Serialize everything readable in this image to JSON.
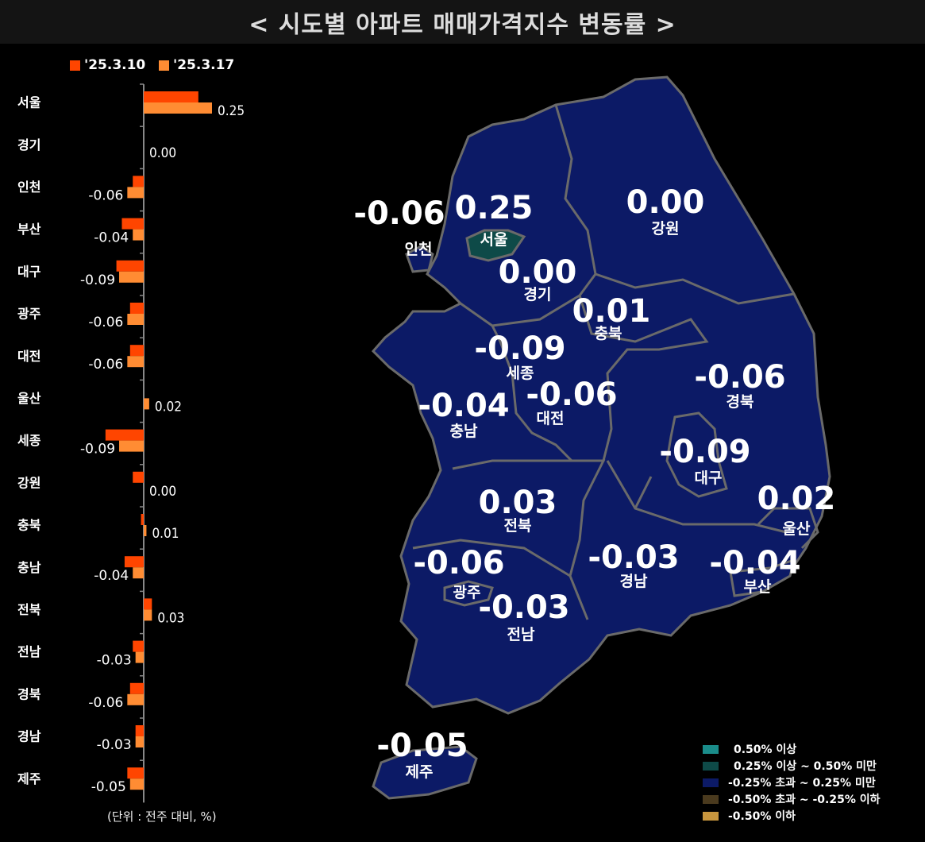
{
  "title": "< 시도별 아파트 매매가격지수 변동률 >",
  "unit_note": "(단위 : 전주 대비, %)",
  "colors": {
    "series_prev": "#ff4500",
    "series_curr": "#ff8c33",
    "map_fill": "#0c1a66",
    "seoul_fill": "#0e4a48",
    "border": "#6a6a6a"
  },
  "chart_data": [
    {
      "type": "bar",
      "orientation": "horizontal",
      "categories": [
        "서울",
        "경기",
        "인천",
        "부산",
        "대구",
        "광주",
        "대전",
        "울산",
        "세종",
        "강원",
        "충북",
        "충남",
        "전북",
        "전남",
        "경북",
        "경남",
        "제주"
      ],
      "series": [
        {
          "name": "'25.3.10",
          "values": [
            0.2,
            0.0,
            -0.04,
            -0.08,
            -0.1,
            -0.05,
            -0.05,
            0.0,
            -0.14,
            -0.04,
            -0.01,
            -0.07,
            0.03,
            -0.04,
            -0.05,
            -0.03,
            -0.06
          ]
        },
        {
          "name": "'25.3.17",
          "values": [
            0.25,
            0.0,
            -0.06,
            -0.04,
            -0.09,
            -0.06,
            -0.06,
            0.02,
            -0.09,
            0.0,
            0.01,
            -0.04,
            0.03,
            -0.03,
            -0.06,
            -0.03,
            -0.05
          ]
        }
      ],
      "data_labels": [
        "0.25",
        "0.00",
        "-0.06",
        "-0.04",
        "-0.09",
        "-0.06",
        "-0.06",
        "0.02",
        "-0.09",
        "0.00",
        "0.01",
        "-0.04",
        "0.03",
        "-0.03",
        "-0.06",
        "-0.03",
        "-0.05"
      ],
      "legend": "top"
    },
    {
      "type": "choropleth-map",
      "regions": [
        {
          "name": "인천",
          "value": "-0.06"
        },
        {
          "name": "서울",
          "value": "0.25"
        },
        {
          "name": "강원",
          "value": "0.00"
        },
        {
          "name": "경기",
          "value": "0.00"
        },
        {
          "name": "충북",
          "value": "0.01"
        },
        {
          "name": "세종",
          "value": "-0.09"
        },
        {
          "name": "경북",
          "value": "-0.06"
        },
        {
          "name": "충남",
          "value": "-0.04"
        },
        {
          "name": "대전",
          "value": "-0.06"
        },
        {
          "name": "대구",
          "value": "-0.09"
        },
        {
          "name": "전북",
          "value": "0.03"
        },
        {
          "name": "울산",
          "value": "0.02"
        },
        {
          "name": "광주",
          "value": "-0.06"
        },
        {
          "name": "경남",
          "value": "-0.03"
        },
        {
          "name": "부산",
          "value": "-0.04"
        },
        {
          "name": "전남",
          "value": "-0.03"
        },
        {
          "name": "제주",
          "value": "-0.05"
        }
      ],
      "legend": [
        {
          "label": "0.50% 이상",
          "color": "#1a8c8a"
        },
        {
          "label": "0.25% 이상 ~ 0.50% 미만",
          "color": "#0e4a48"
        },
        {
          "label": "-0.25% 초과 ~ 0.25% 미만",
          "color": "#0c1a66"
        },
        {
          "label": "-0.50% 초과 ~ -0.25% 이하",
          "color": "#4a3a1e"
        },
        {
          "label": "-0.50% 이하",
          "color": "#c8963e"
        }
      ],
      "legend_position": "bottom-right"
    }
  ]
}
